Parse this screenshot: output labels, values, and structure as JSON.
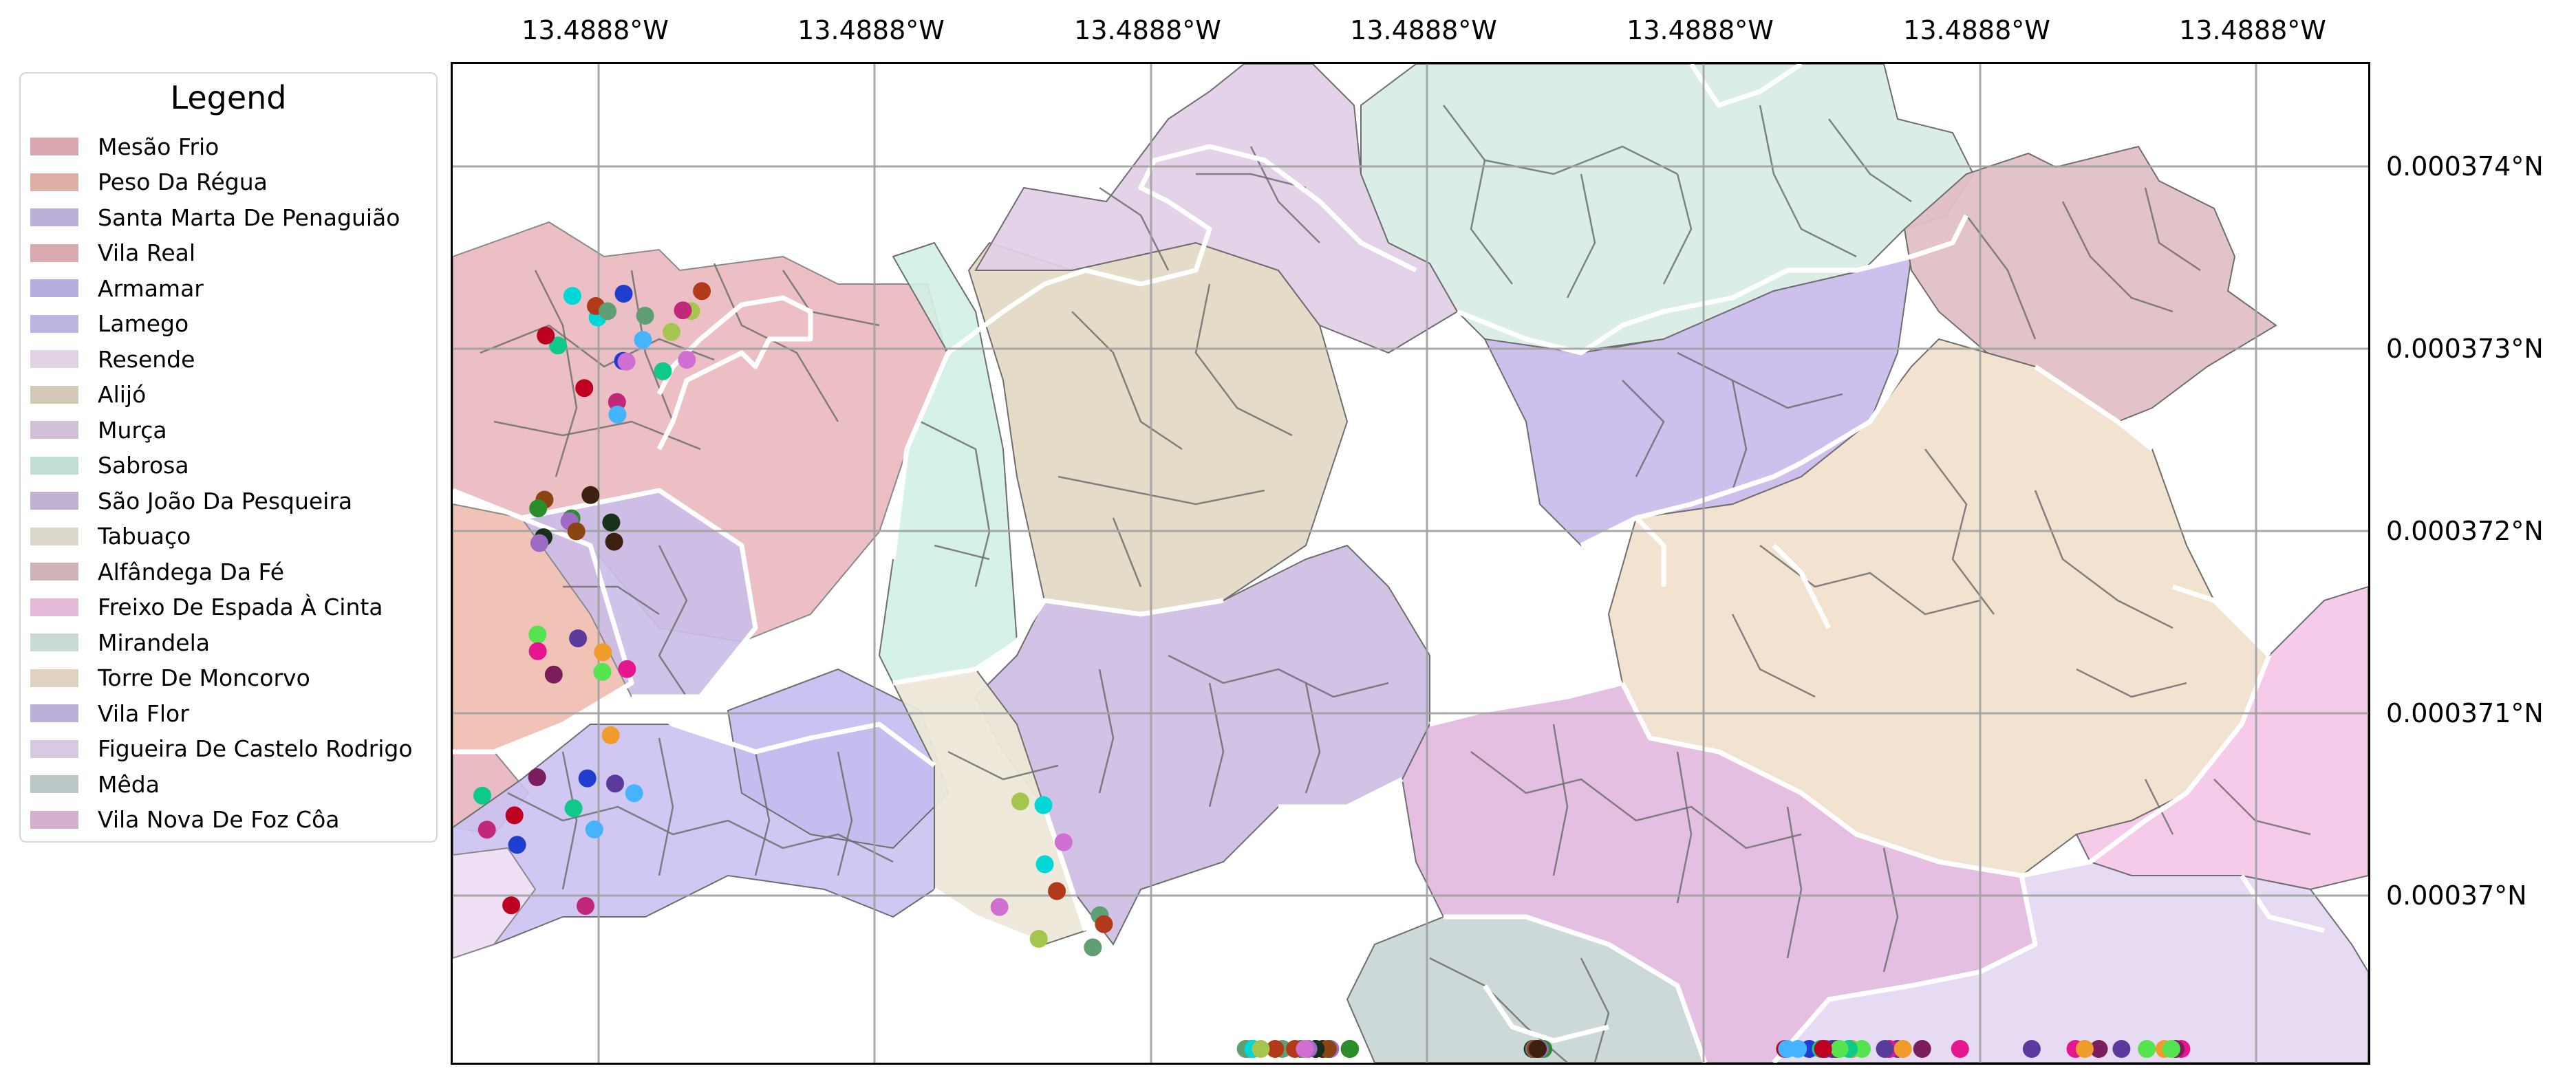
{
  "map": {
    "longitude_labels": [
      "13.4888°W",
      "13.4888°W",
      "13.4888°W",
      "13.4888°W",
      "13.4888°W",
      "13.4888°W",
      "13.4888°W"
    ],
    "latitude_labels": [
      "0.000374°N",
      "0.000373°N",
      "0.000372°N",
      "0.000371°N",
      "0.00037°N"
    ],
    "grid": true,
    "region_boundary_color": "#ffffff",
    "subdivision_line_color": "#6e6e6e"
  },
  "legend": {
    "title": "Legend",
    "placement": "left, outside map",
    "items": [
      {
        "label": "Mesão Frio",
        "color": "#e8b4bc"
      },
      {
        "label": "Peso Da Régua",
        "color": "#eebcae"
      },
      {
        "label": "Santa Marta De Penaguião",
        "color": "#cbbde8"
      },
      {
        "label": "Vila Real",
        "color": "#e9b8bc"
      },
      {
        "label": "Armamar",
        "color": "#c2bcf0"
      },
      {
        "label": "Lamego",
        "color": "#cbc2f2"
      },
      {
        "label": "Resende",
        "color": "#f3e2f6"
      },
      {
        "label": "Alijó",
        "color": "#e2d9c4"
      },
      {
        "label": "Murça",
        "color": "#e2cfe6"
      },
      {
        "label": "Sabrosa",
        "color": "#d2efe6"
      },
      {
        "label": "São João Da Pesqueira",
        "color": "#d0bfe4"
      },
      {
        "label": "Tabuaço",
        "color": "#ede8d8"
      },
      {
        "label": "Alfândega Da Fé",
        "color": "#e0c0c4"
      },
      {
        "label": "Freixo De Espada À Cinta",
        "color": "#f6c8e8"
      },
      {
        "label": "Mirandela",
        "color": "#d8ece6"
      },
      {
        "label": "Torre De Moncorvo",
        "color": "#f0e2cc"
      },
      {
        "label": "Vila Flor",
        "color": "#cabdeb"
      },
      {
        "label": "Figueira De Castelo Rodrigo",
        "color": "#e6d8f2"
      },
      {
        "label": "Mêda",
        "color": "#cad6d6"
      },
      {
        "label": "Vila Nova De Foz Côa",
        "color": "#e4bce0"
      }
    ]
  },
  "points": {
    "count_visible": 120,
    "palette": [
      "#1f3ecf",
      "#00d7d7",
      "#2a8f2a",
      "#7a1e5e",
      "#46b3ff",
      "#a6c54f",
      "#8b4513",
      "#5b3a9e",
      "#c1287a",
      "#5f9f73",
      "#17301c",
      "#e5168e",
      "#0fc98a",
      "#b23a1a",
      "#9e6cc4",
      "#55e34f",
      "#c00020",
      "#d06fd2",
      "#3c2010",
      "#f09c2a"
    ]
  }
}
